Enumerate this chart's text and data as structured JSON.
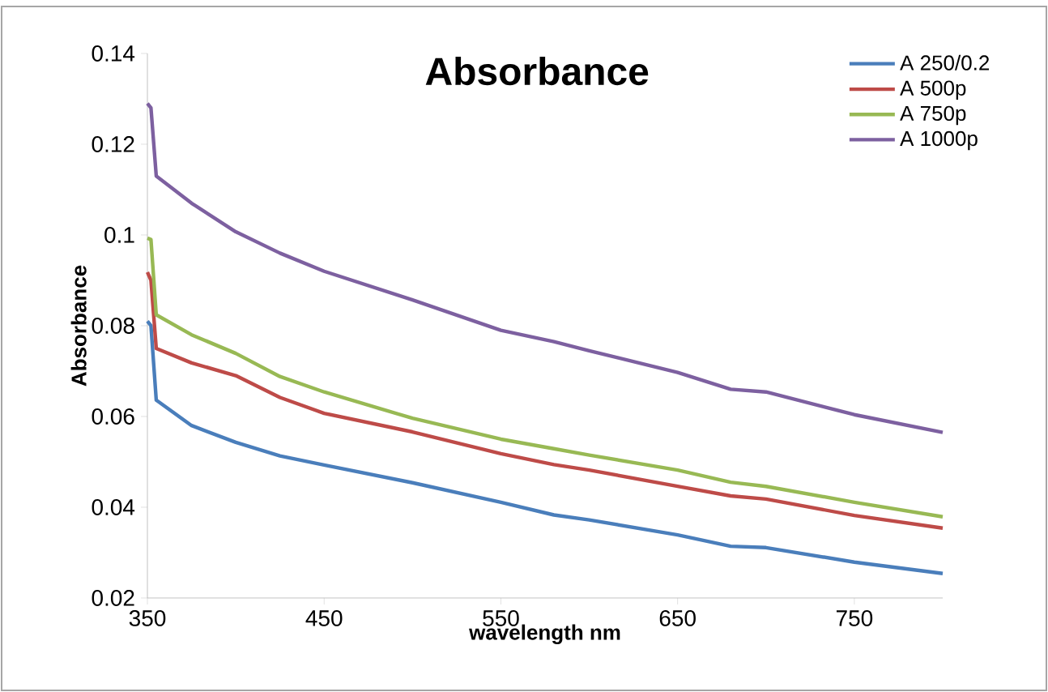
{
  "chart_data": {
    "type": "line",
    "title": "Absorbance",
    "xlabel": "wavelength  nm",
    "ylabel": "Absorbance",
    "xlim": [
      350,
      800
    ],
    "xticks": [
      350,
      450,
      550,
      650,
      750
    ],
    "ylim": [
      0.02,
      0.14
    ],
    "yticks": [
      0.02,
      0.04,
      0.06,
      0.08,
      0.1,
      0.12,
      0.14
    ],
    "grid": false,
    "legend": "top right",
    "marker": "none",
    "line_style": "solid",
    "x": [
      350,
      352,
      355,
      375,
      400,
      425,
      450,
      500,
      550,
      580,
      600,
      650,
      680,
      700,
      750,
      800
    ],
    "series": [
      {
        "name": "A 250/0.2",
        "color": "#4a7ebb",
        "values": [
          0.081,
          0.08,
          0.0636,
          0.058,
          0.0543,
          0.0513,
          0.0493,
          0.0454,
          0.0411,
          0.0383,
          0.0372,
          0.0339,
          0.0314,
          0.0311,
          0.0279,
          0.0254
        ]
      },
      {
        "name": "A 500p",
        "color": "#be4b48",
        "values": [
          0.0918,
          0.09,
          0.075,
          0.0718,
          0.069,
          0.0642,
          0.0607,
          0.0566,
          0.0518,
          0.0494,
          0.0482,
          0.0446,
          0.0425,
          0.0418,
          0.0382,
          0.0354
        ]
      },
      {
        "name": "A 750p",
        "color": "#98b954",
        "values": [
          0.0993,
          0.099,
          0.0824,
          0.078,
          0.0739,
          0.0688,
          0.0654,
          0.0596,
          0.055,
          0.0529,
          0.0515,
          0.0482,
          0.0455,
          0.0446,
          0.0411,
          0.0379
        ]
      },
      {
        "name": "A 1000p",
        "color": "#7d60a0",
        "values": [
          0.129,
          0.128,
          0.113,
          0.107,
          0.1007,
          0.096,
          0.092,
          0.0857,
          0.079,
          0.0765,
          0.0745,
          0.0697,
          0.066,
          0.0654,
          0.0604,
          0.0565
        ]
      }
    ]
  }
}
